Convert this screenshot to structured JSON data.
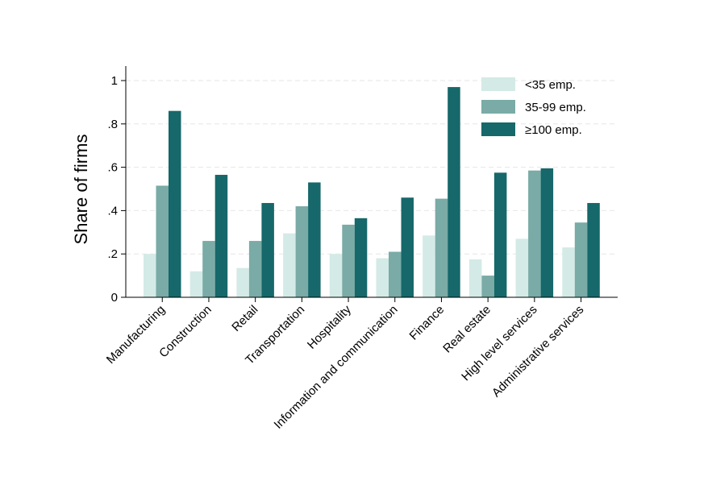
{
  "chart_data": {
    "type": "bar",
    "title": "",
    "xlabel": "",
    "ylabel": "Share of firms",
    "ylim": [
      0,
      1
    ],
    "yticks": [
      0,
      0.2,
      0.4,
      0.6,
      0.8,
      1
    ],
    "ytick_labels": [
      "0",
      ".2",
      ".4",
      ".6",
      ".8",
      "1"
    ],
    "grid": true,
    "legend_position": "top-right",
    "categories": [
      "Manufacturing",
      "Construction",
      "Retail",
      "Transportation",
      "Hospitality",
      "Information and communication",
      "Finance",
      "Real estate",
      "High level services",
      "Administrative services"
    ],
    "series": [
      {
        "name": "<35 emp.",
        "color": "#d4eae6",
        "values": [
          0.2,
          0.12,
          0.135,
          0.295,
          0.2,
          0.18,
          0.285,
          0.175,
          0.27,
          0.23
        ]
      },
      {
        "name": "35-99 emp.",
        "color": "#7aaba6",
        "values": [
          0.515,
          0.26,
          0.26,
          0.42,
          0.335,
          0.21,
          0.455,
          0.1,
          0.585,
          0.345
        ]
      },
      {
        "name": "≥100 emp.",
        "color": "#16686a",
        "values": [
          0.86,
          0.565,
          0.435,
          0.53,
          0.365,
          0.46,
          0.97,
          0.575,
          0.595,
          0.435
        ]
      }
    ]
  }
}
